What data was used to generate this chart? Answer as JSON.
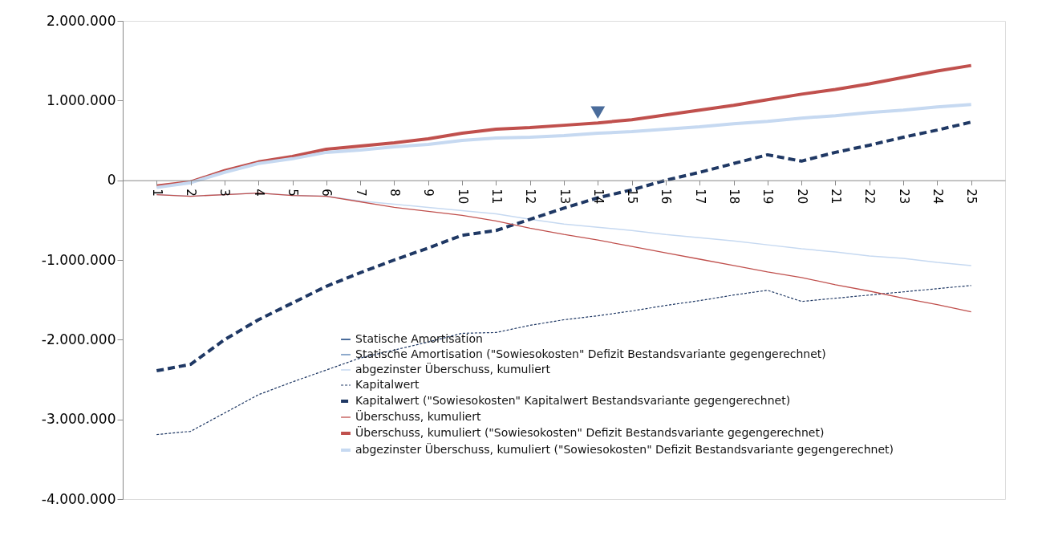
{
  "chart_data": {
    "type": "line",
    "categories": [
      "1",
      "2",
      "3",
      "4",
      "5",
      "6",
      "7",
      "8",
      "9",
      "10",
      "11",
      "12",
      "13",
      "14",
      "15",
      "16",
      "17",
      "18",
      "19",
      "20",
      "21",
      "22",
      "23",
      "24",
      "25"
    ],
    "ylim": [
      -4000000,
      2000000
    ],
    "yticks": [
      {
        "value": -4000000,
        "label": "-4.000.000"
      },
      {
        "value": -3000000,
        "label": "-3.000.000"
      },
      {
        "value": -2000000,
        "label": "-2.000.000"
      },
      {
        "value": -1000000,
        "label": "-1.000.000"
      },
      0,
      {
        "value": 1000000,
        "label": "1.000.000"
      },
      {
        "value": 2000000,
        "label": "2.000.000"
      }
    ],
    "grid": false,
    "legend": "bottom",
    "series": [
      {
        "name": "Statische Amortisation",
        "type": "scatter",
        "marker": "triangle",
        "color": "#4a6c9b",
        "values": [
          null,
          null,
          null,
          null,
          null,
          null,
          null,
          null,
          null,
          null,
          null,
          null,
          null,
          850000,
          null,
          null,
          null,
          null,
          null,
          null,
          null,
          null,
          null,
          null,
          null
        ]
      },
      {
        "name": "Statische Amortisation (\"Sowiesokosten\" Defizit Bestandsvariante gegengerechnet)",
        "type": "scatter",
        "marker": "triangle",
        "color": "#8eaacc",
        "values": [
          null,
          null,
          null,
          null,
          null,
          null,
          null,
          null,
          null,
          null,
          null,
          null,
          null,
          null,
          null,
          null,
          null,
          null,
          null,
          null,
          null,
          null,
          null,
          null,
          null
        ]
      },
      {
        "name": "abgezinster Überschuss, kumuliert",
        "color": "#c6d9f1",
        "line_style": "solid",
        "values": [
          -180000,
          -200000,
          -180000,
          -160000,
          -190000,
          -200000,
          -260000,
          -300000,
          -340000,
          -380000,
          -420000,
          -490000,
          -550000,
          -590000,
          -630000,
          -680000,
          -720000,
          -760000,
          -810000,
          -860000,
          -900000,
          -950000,
          -980000,
          -1030000,
          -1070000
        ]
      },
      {
        "name": "Kapitalwert",
        "color": "#1f3864",
        "line_style": "dotted",
        "values": [
          -3190000,
          -3150000,
          -2920000,
          -2690000,
          -2530000,
          -2380000,
          -2230000,
          -2130000,
          -2030000,
          -1920000,
          -1910000,
          -1820000,
          -1750000,
          -1700000,
          -1640000,
          -1570000,
          -1510000,
          -1440000,
          -1380000,
          -1520000,
          -1480000,
          -1440000,
          -1400000,
          -1360000,
          -1320000
        ]
      },
      {
        "name": "Kapitalwert (\"Sowiesokosten\" Kapitalwert Bestandsvariante gegengerechnet)",
        "color": "#1f3864",
        "line_style": "dashed",
        "values": [
          -2390000,
          -2310000,
          -2000000,
          -1750000,
          -1540000,
          -1330000,
          -1160000,
          -1000000,
          -850000,
          -690000,
          -630000,
          -490000,
          -350000,
          -220000,
          -120000,
          0,
          100000,
          210000,
          320000,
          240000,
          350000,
          440000,
          540000,
          630000,
          730000
        ]
      },
      {
        "name": "Überschuss, kumuliert",
        "color": "#c0504d",
        "line_style": "solid",
        "values": [
          -180000,
          -200000,
          -180000,
          -160000,
          -190000,
          -200000,
          -270000,
          -340000,
          -390000,
          -440000,
          -510000,
          -600000,
          -680000,
          -750000,
          -830000,
          -910000,
          -990000,
          -1070000,
          -1150000,
          -1220000,
          -1310000,
          -1390000,
          -1480000,
          -1560000,
          -1650000
        ]
      },
      {
        "name": "Überschuss, kumuliert (\"Sowiesokosten\" Defizit Bestandsvariante gegengerechnet)",
        "color": "#c0504d",
        "line_style": "solid",
        "values": [
          -70000,
          -20000,
          120000,
          230000,
          300000,
          390000,
          430000,
          470000,
          520000,
          590000,
          640000,
          660000,
          690000,
          720000,
          760000,
          820000,
          880000,
          940000,
          1010000,
          1080000,
          1140000,
          1210000,
          1290000,
          1370000,
          1440000
        ]
      },
      {
        "name": "abgezinster Überschuss, kumuliert (\"Sowiesokosten\" Defizit Bestandsvariante gegengerechnet)",
        "color": "#c6d9f1",
        "line_style": "solid",
        "values": [
          -90000,
          -30000,
          100000,
          210000,
          270000,
          350000,
          380000,
          420000,
          450000,
          500000,
          530000,
          540000,
          560000,
          590000,
          610000,
          640000,
          670000,
          710000,
          740000,
          780000,
          810000,
          850000,
          880000,
          920000,
          950000
        ]
      }
    ]
  }
}
